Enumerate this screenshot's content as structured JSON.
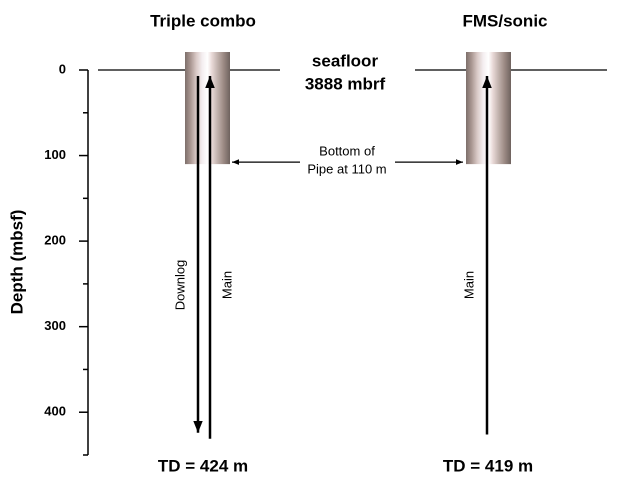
{
  "axis": {
    "label": "Depth (mbsf)",
    "ylim": [
      0,
      450
    ],
    "yticks": [
      0,
      100,
      200,
      300,
      400
    ],
    "minor_ticks": [
      50,
      150,
      250,
      350,
      450
    ]
  },
  "seafloor": {
    "label_1": "seafloor",
    "label_2": "3888 mbrf"
  },
  "pipe": {
    "depth": 110,
    "label_1": "Bottom of",
    "label_2": "Pipe at 110 m"
  },
  "columns": [
    {
      "title": "Triple combo",
      "runs": [
        {
          "name": "Downlog",
          "direction": "down"
        },
        {
          "name": "Main",
          "direction": "up"
        }
      ],
      "td": 424,
      "td_label": "TD = 424 m"
    },
    {
      "title": "FMS/sonic",
      "runs": [
        {
          "name": "Main",
          "direction": "up"
        }
      ],
      "td": 419,
      "td_label": "TD = 419 m"
    }
  ]
}
